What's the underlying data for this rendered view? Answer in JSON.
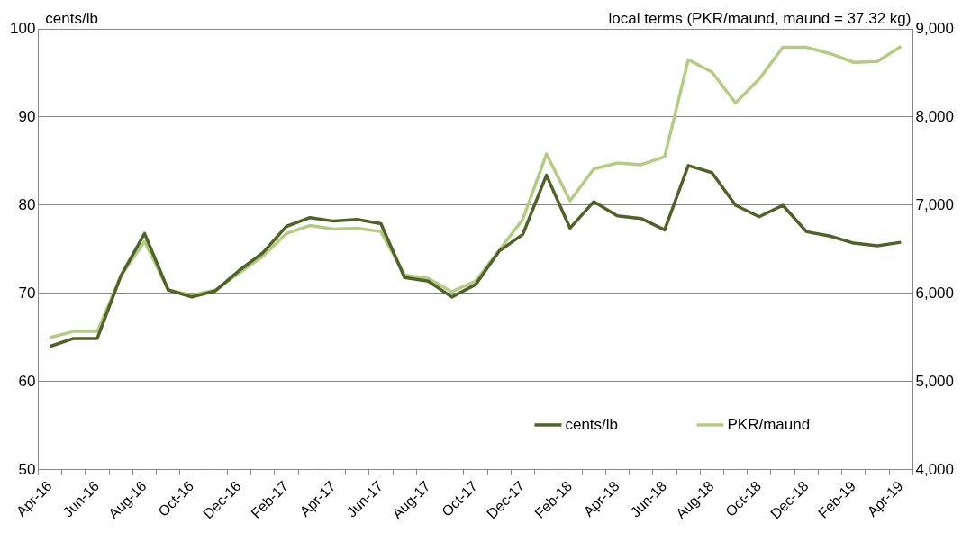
{
  "chart_data": {
    "type": "line",
    "ylabel": "cents/lb",
    "y2label": "local terms (PKR/maund, maund = 37.32 kg)",
    "categories": [
      "Apr-16",
      null,
      "Jun-16",
      null,
      "Aug-16",
      null,
      "Oct-16",
      null,
      "Dec-16",
      null,
      "Feb-17",
      null,
      "Apr-17",
      null,
      "Jun-17",
      null,
      "Aug-17",
      null,
      "Oct-17",
      null,
      "Dec-17",
      null,
      "Feb-18",
      null,
      "Apr-18",
      null,
      "Jun-18",
      null,
      "Aug-18",
      null,
      "Oct-18",
      null,
      "Dec-18",
      null,
      "Feb-19",
      null,
      "Apr-19"
    ],
    "series": [
      {
        "name": "cents/lb",
        "color": "#4f6228",
        "values": [
          64.0,
          64.9,
          64.9,
          72.0,
          76.8,
          70.4,
          69.6,
          70.3,
          72.6,
          74.6,
          77.6,
          78.6,
          78.2,
          78.4,
          77.9,
          71.8,
          71.4,
          69.6,
          71.0,
          74.8,
          76.7,
          83.4,
          77.4,
          80.4,
          78.8,
          78.5,
          77.2,
          84.5,
          83.7,
          80.0,
          78.7,
          80.0,
          77.0,
          76.5,
          75.7,
          75.4,
          75.8
        ]
      },
      {
        "name": "PKR/maund",
        "color": "#b3cc82",
        "axis": "y2",
        "values": [
          5500,
          5570,
          5570,
          6200,
          6590,
          6040,
          5980,
          6040,
          6230,
          6420,
          6680,
          6770,
          6730,
          6740,
          6700,
          6210,
          6170,
          6020,
          6140,
          6490,
          6840,
          7580,
          7050,
          7410,
          7480,
          7460,
          7550,
          8650,
          8510,
          8160,
          8430,
          8790,
          8790,
          8720,
          8620,
          8630,
          8800
        ]
      }
    ],
    "ylim": [
      50,
      100
    ],
    "yticks": [
      50,
      60,
      70,
      80,
      90,
      100
    ],
    "y2lim": [
      4000,
      9000
    ],
    "y2ticks": [
      {
        "value": 4000,
        "label": "4,000"
      },
      {
        "value": 5000,
        "label": "5,000"
      },
      {
        "value": 6000,
        "label": "6,000"
      },
      {
        "value": 7000,
        "label": "7,000"
      },
      {
        "value": 8000,
        "label": "8,000"
      },
      {
        "value": 9000,
        "label": "9,000"
      }
    ],
    "grid": "y",
    "legend": "bottom right",
    "marker": "none",
    "line_style": "solid"
  }
}
